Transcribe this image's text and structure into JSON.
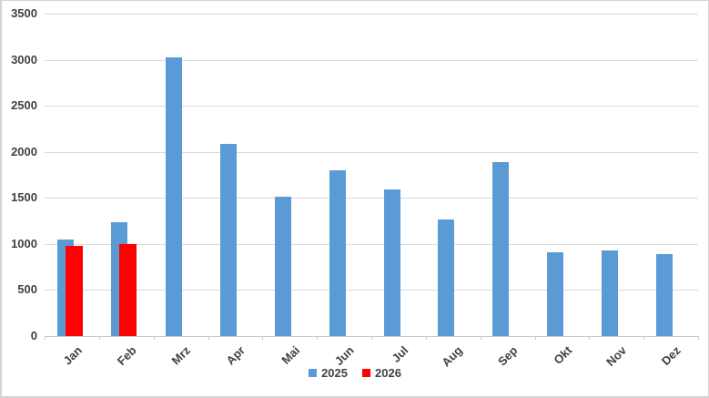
{
  "page": {
    "background": "#ffffff",
    "border_color": "#d4d4d4"
  },
  "chart_data": {
    "type": "bar",
    "title": "",
    "xlabel": "",
    "ylabel": "",
    "categories": [
      "Jan",
      "Feb",
      "Mrz",
      "Apr",
      "Mai",
      "Jun",
      "Jul",
      "Aug",
      "Sep",
      "Okt",
      "Nov",
      "Dez"
    ],
    "series": [
      {
        "name": "2025",
        "color": "#5B9BD5",
        "values": [
          1050,
          1240,
          3030,
          2090,
          1510,
          1800,
          1590,
          1270,
          1890,
          910,
          930,
          890
        ]
      },
      {
        "name": "2026",
        "color": "#FF0000",
        "values": [
          975,
          1000,
          null,
          null,
          null,
          null,
          null,
          null,
          null,
          null,
          null,
          null
        ]
      }
    ],
    "ylim": [
      0,
      3500
    ],
    "yticks": [
      0,
      500,
      1000,
      1500,
      2000,
      2500,
      3000,
      3500
    ],
    "grid": true,
    "gridline_color": "#d9d9d9",
    "axis_text_color": "#404040",
    "legend_position": "bottom",
    "x_tick_labels_rotation_deg": -45
  }
}
